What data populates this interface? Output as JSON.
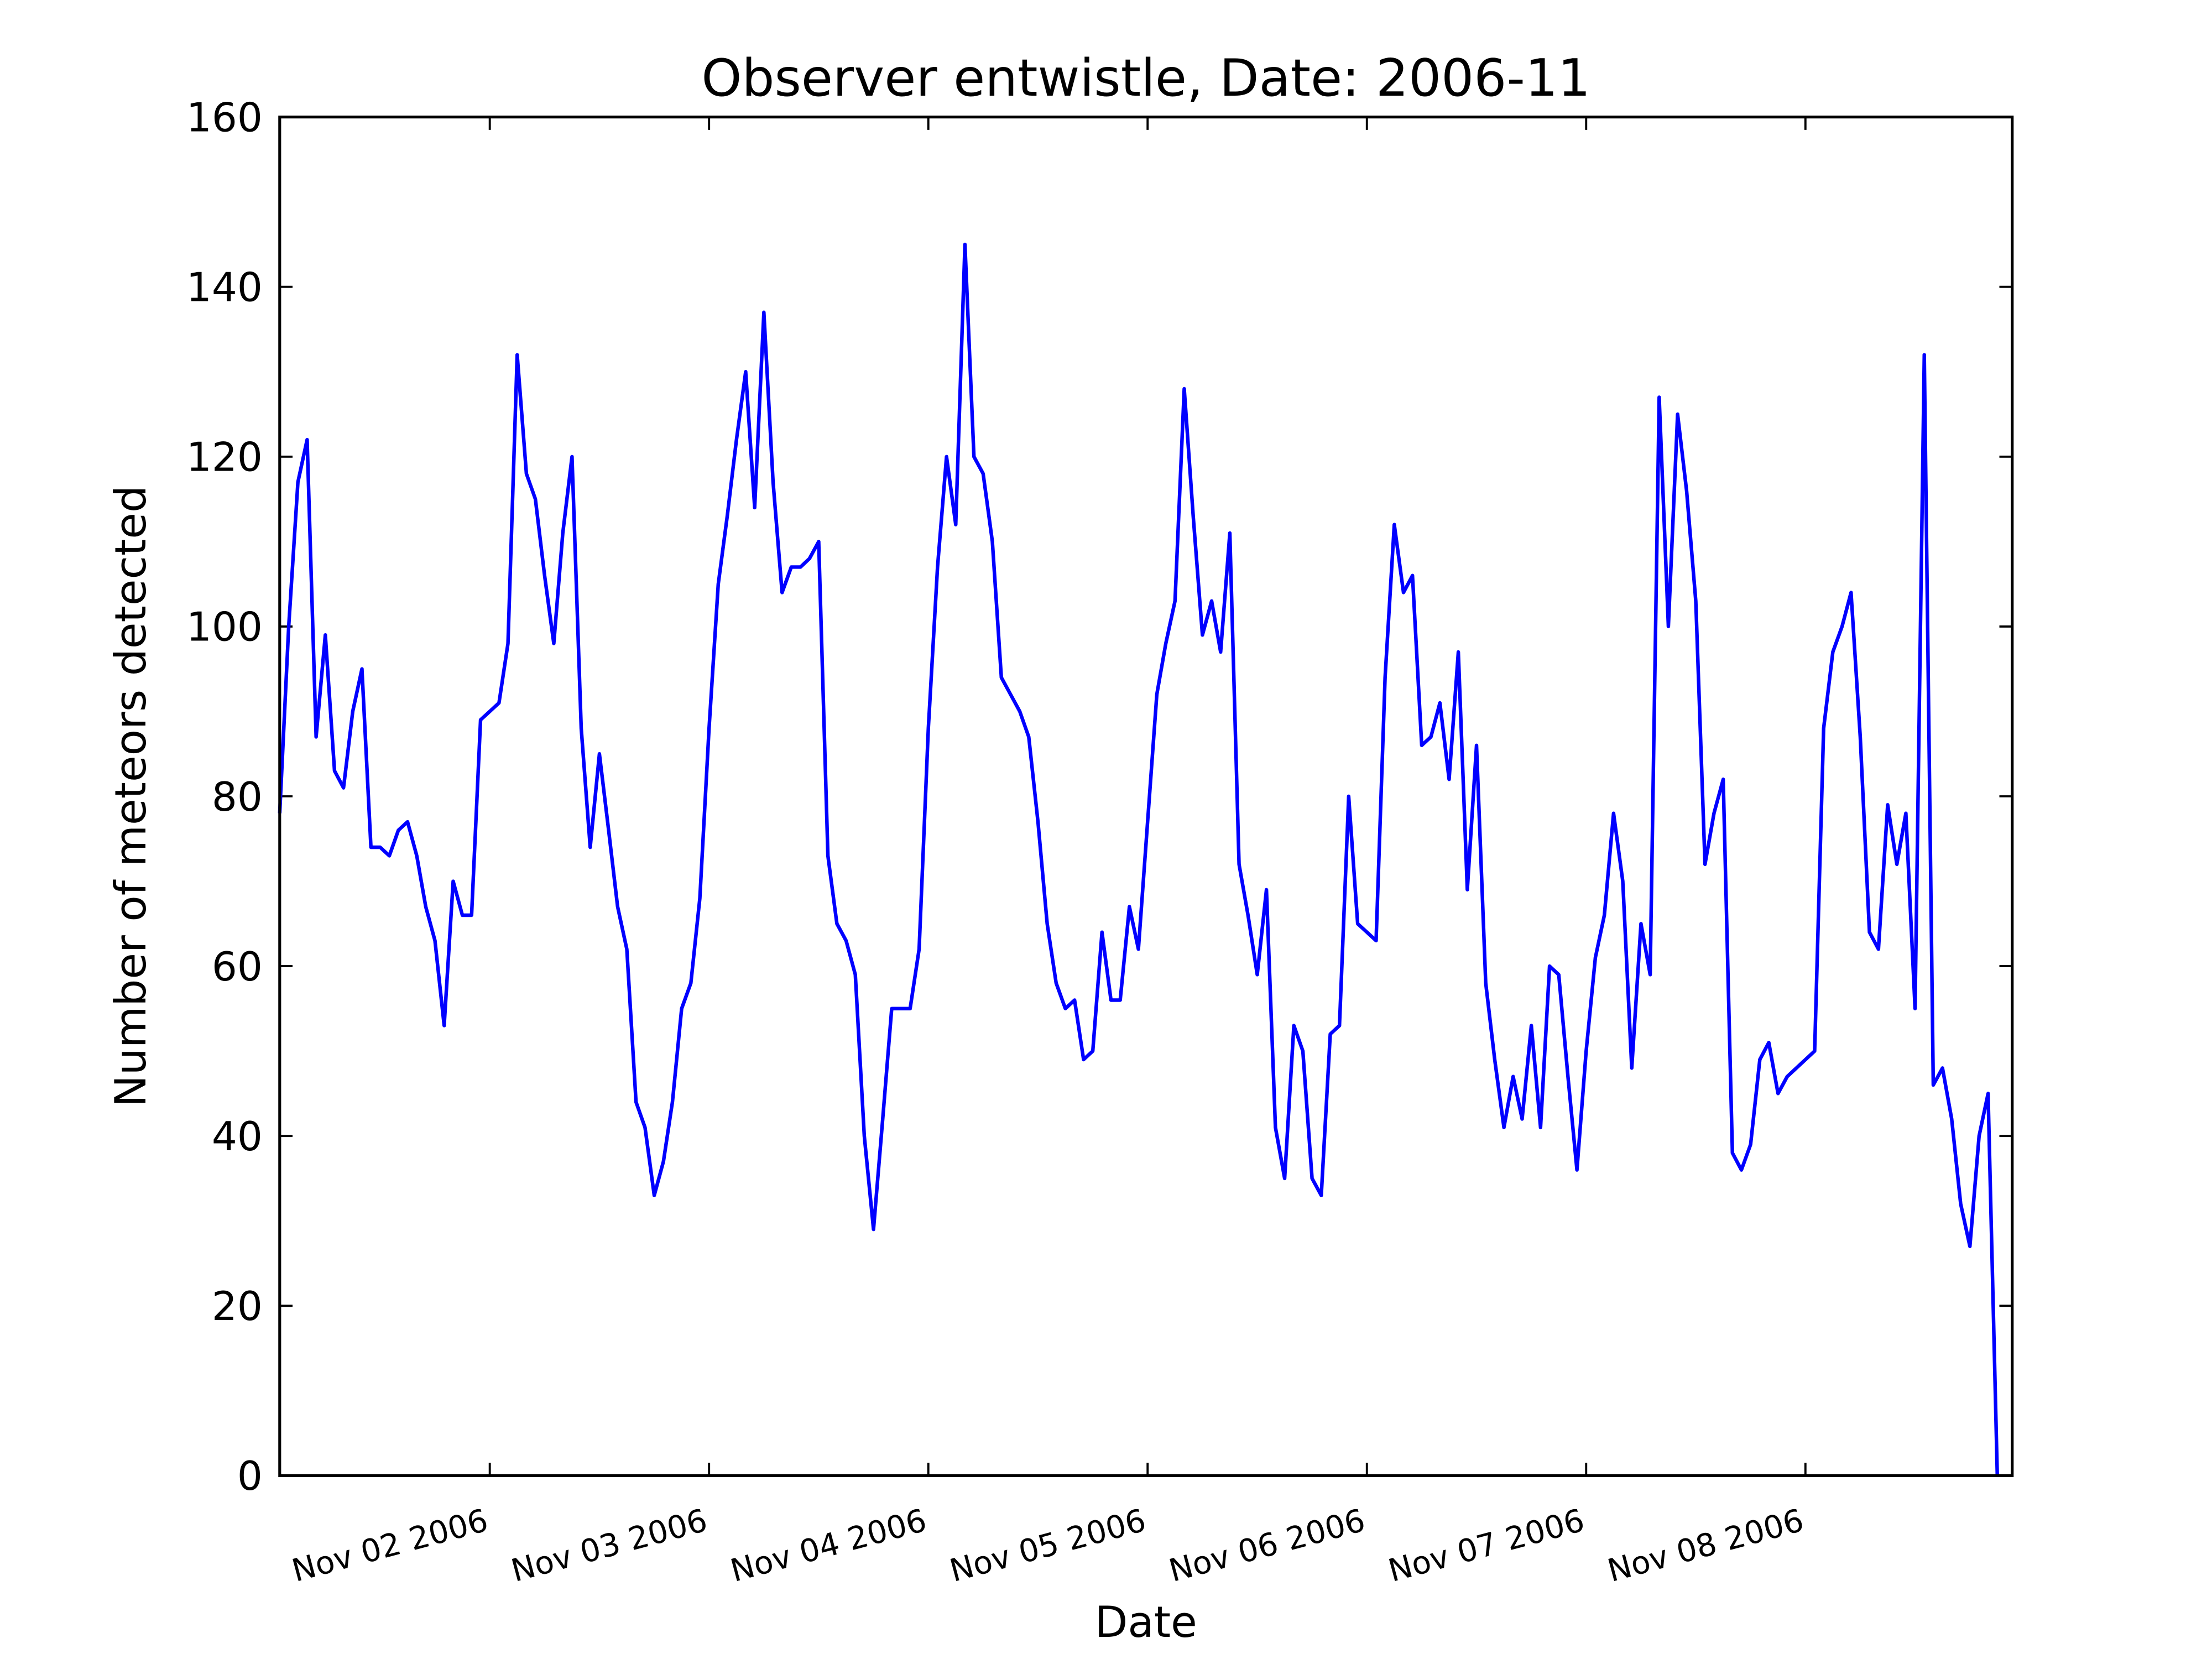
{
  "chart_data": {
    "type": "line",
    "title": "Observer entwistle, Date: 2006-11",
    "xlabel": "Date",
    "ylabel": "Number of meteors detected",
    "x": [
      1.042,
      1.083,
      1.125,
      1.167,
      1.208,
      1.25,
      1.292,
      1.333,
      1.375,
      1.417,
      1.458,
      1.5,
      1.542,
      1.583,
      1.625,
      1.667,
      1.708,
      1.75,
      1.792,
      1.833,
      1.875,
      1.917,
      1.958,
      2,
      2.042,
      2.083,
      2.125,
      2.167,
      2.208,
      2.25,
      2.292,
      2.333,
      2.375,
      2.417,
      2.458,
      2.5,
      2.542,
      2.583,
      2.625,
      2.667,
      2.708,
      2.75,
      2.792,
      2.833,
      2.875,
      2.917,
      2.958,
      3,
      3.042,
      3.083,
      3.125,
      3.167,
      3.208,
      3.25,
      3.292,
      3.333,
      3.375,
      3.417,
      3.458,
      3.5,
      3.542,
      3.583,
      3.625,
      3.667,
      3.708,
      3.75,
      3.792,
      3.833,
      3.875,
      3.917,
      3.958,
      4,
      4.042,
      4.083,
      4.125,
      4.167,
      4.208,
      4.25,
      4.292,
      4.333,
      4.375,
      4.417,
      4.458,
      4.5,
      4.542,
      4.583,
      4.625,
      4.667,
      4.708,
      4.75,
      4.792,
      4.833,
      4.875,
      4.917,
      4.958,
      5,
      5.042,
      5.083,
      5.125,
      5.167,
      5.208,
      5.25,
      5.292,
      5.333,
      5.375,
      5.417,
      5.458,
      5.5,
      5.542,
      5.583,
      5.625,
      5.667,
      5.708,
      5.75,
      5.792,
      5.833,
      5.875,
      5.917,
      5.958,
      6,
      6.042,
      6.083,
      6.125,
      6.167,
      6.208,
      6.25,
      6.292,
      6.333,
      6.375,
      6.417,
      6.458,
      6.5,
      6.542,
      6.583,
      6.625,
      6.667,
      6.708,
      6.75,
      6.792,
      6.833,
      6.875,
      6.917,
      6.958,
      7,
      7.042,
      7.083,
      7.125,
      7.167,
      7.208,
      7.25,
      7.292,
      7.333,
      7.375,
      7.417,
      7.458,
      7.5,
      7.542,
      7.583,
      7.625,
      7.667,
      7.708,
      7.75,
      7.792,
      7.833,
      7.875,
      7.917,
      8.042,
      8.083,
      8.125,
      8.167,
      8.208,
      8.25,
      8.292,
      8.333,
      8.375,
      8.417,
      8.458,
      8.5,
      8.542,
      8.583,
      8.625,
      8.667,
      8.708,
      8.75,
      8.792,
      8.833,
      8.875
    ],
    "series": [
      {
        "color": "#0000ff",
        "values": [
          78,
          100,
          117,
          122,
          87,
          99,
          83,
          81,
          90,
          95,
          74,
          74,
          73,
          76,
          77,
          73,
          67,
          63,
          53,
          70,
          66,
          66,
          89,
          90,
          91,
          98,
          132,
          118,
          115,
          106,
          98,
          111,
          120,
          88,
          74,
          85,
          76,
          67,
          62,
          44,
          41,
          33,
          37,
          44,
          55,
          58,
          68,
          88,
          105,
          113,
          122,
          130,
          114,
          137,
          117,
          104,
          107,
          107,
          108,
          110,
          73,
          65,
          63,
          59,
          40,
          29,
          42,
          55,
          55,
          55,
          62,
          88,
          107,
          120,
          112,
          145,
          120,
          118,
          110,
          94,
          92,
          90,
          87,
          77,
          65,
          58,
          55,
          56,
          49,
          50,
          64,
          56,
          56,
          67,
          62,
          77,
          92,
          98,
          103,
          128,
          113,
          99,
          103,
          97,
          111,
          72,
          66,
          59,
          69,
          41,
          35,
          53,
          50,
          35,
          33,
          52,
          53,
          80,
          65,
          64,
          63,
          94,
          112,
          104,
          106,
          86,
          87,
          91,
          82,
          97,
          69,
          86,
          58,
          49,
          41,
          47,
          42,
          53,
          41,
          60,
          59,
          47,
          36,
          50,
          61,
          66,
          78,
          70,
          48,
          65,
          59,
          127,
          100,
          125,
          116,
          103,
          72,
          78,
          82,
          38,
          36,
          39,
          49,
          51,
          45,
          47,
          50,
          88,
          97,
          100,
          104,
          87,
          64,
          62,
          79,
          72,
          78,
          55,
          132,
          46,
          48,
          42,
          32,
          27,
          40,
          45,
          0
        ]
      }
    ],
    "xlim": [
      1.042,
      8.943
    ],
    "xticks": [
      {
        "value": 2,
        "label": "Nov 02 2006"
      },
      {
        "value": 3,
        "label": "Nov 03 2006"
      },
      {
        "value": 4,
        "label": "Nov 04 2006"
      },
      {
        "value": 5,
        "label": "Nov 05 2006"
      },
      {
        "value": 6,
        "label": "Nov 06 2006"
      },
      {
        "value": 7,
        "label": "Nov 07 2006"
      },
      {
        "value": 8,
        "label": "Nov 08 2006"
      }
    ],
    "ylim": [
      0,
      160
    ],
    "yticks": [
      0,
      20,
      40,
      60,
      80,
      100,
      120,
      140,
      160
    ],
    "grid": false
  }
}
